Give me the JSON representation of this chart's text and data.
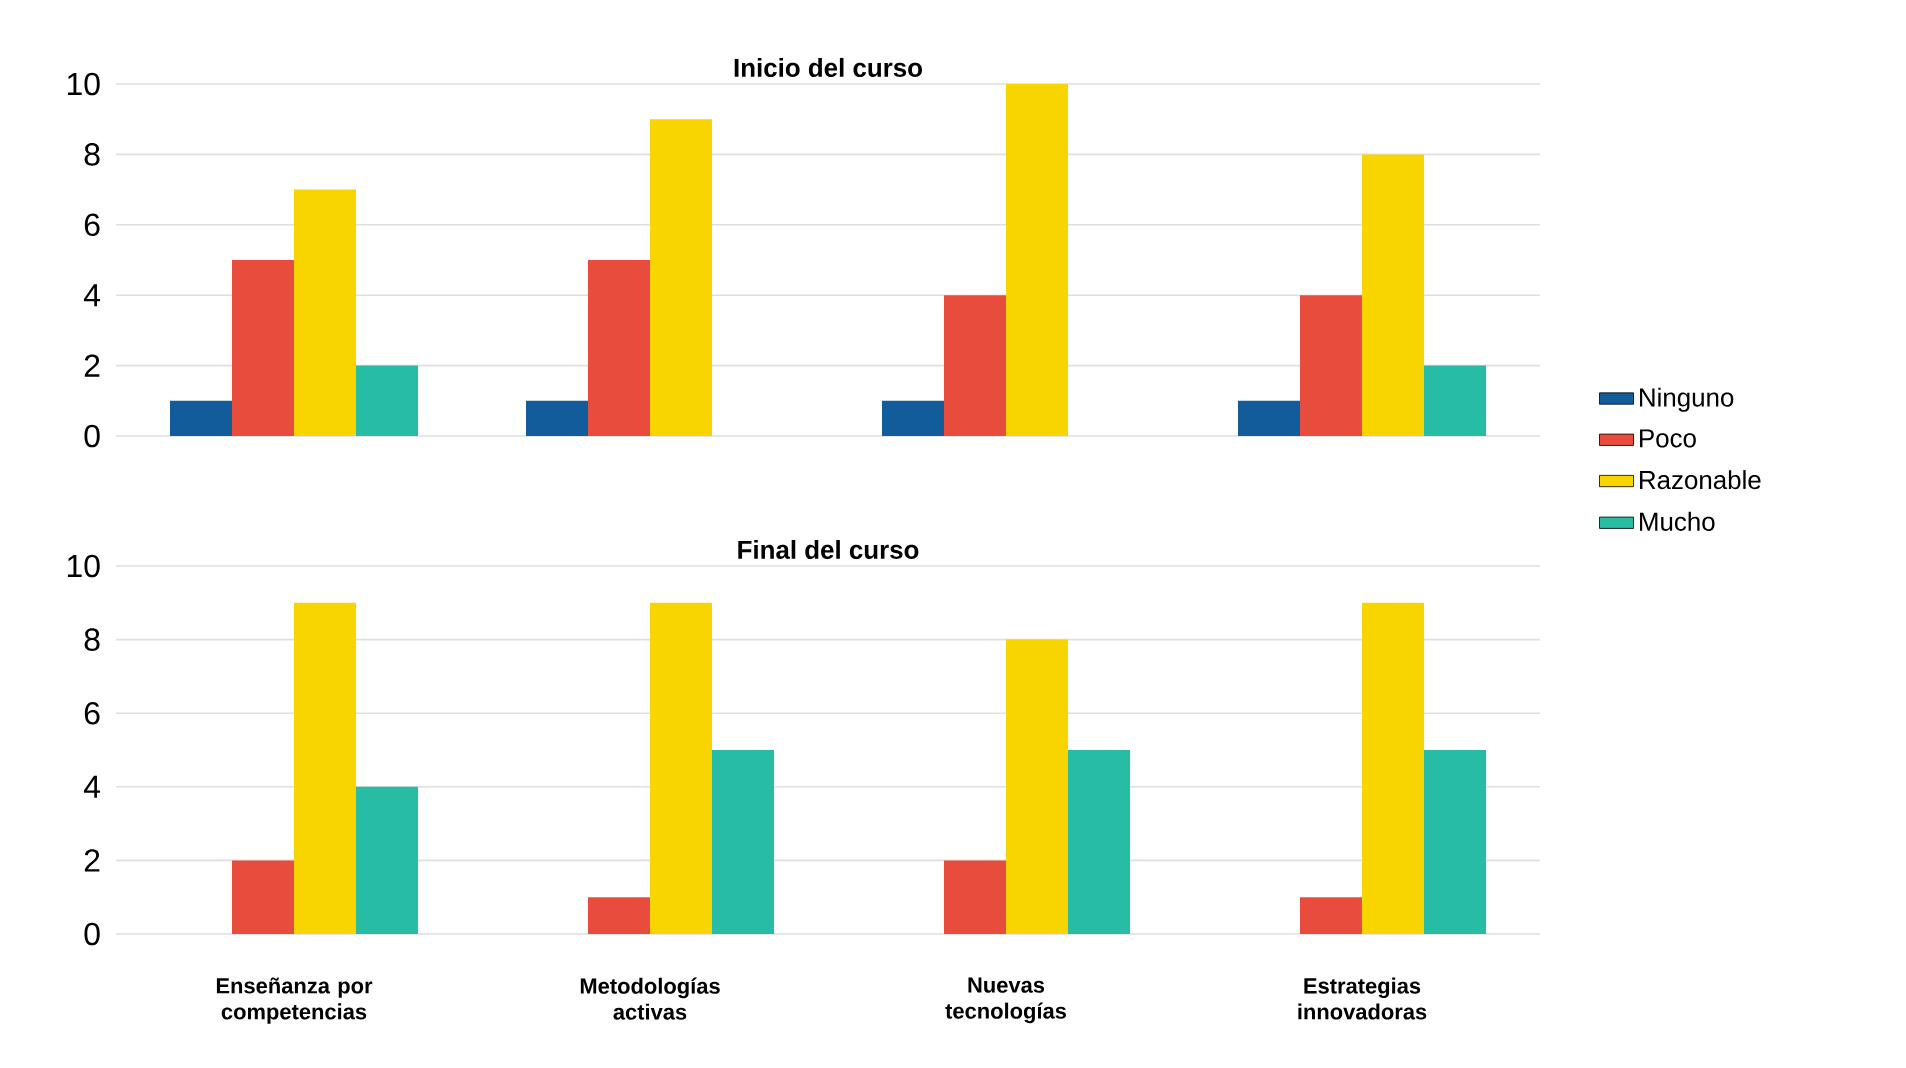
{
  "chart_data": [
    {
      "type": "bar",
      "title": "Inicio del curso",
      "categories": [
        null,
        null,
        null,
        null
      ],
      "tick_labels": "y",
      "ylim": [
        0,
        10
      ],
      "yticks": [
        0,
        2,
        4,
        6,
        8,
        10
      ],
      "grid": "y",
      "legend": "right",
      "series": [
        {
          "name": "Ninguno",
          "color": "#135c9b",
          "values": [
            1,
            1,
            1,
            1
          ]
        },
        {
          "name": "Poco",
          "color": "#e84c3d",
          "values": [
            5,
            5,
            4,
            4
          ]
        },
        {
          "name": "Razonable",
          "color": "#f9d500",
          "values": [
            7,
            9,
            10,
            8
          ]
        },
        {
          "name": "Mucho",
          "color": "#27bca4",
          "values": [
            2,
            0,
            0,
            2
          ]
        }
      ]
    },
    {
      "type": "bar",
      "title": "Final del curso",
      "categories": [
        "Enseñanza por competencias",
        "Metodologías activas",
        "Nuevas tecnologías",
        "Estrategias innovadoras"
      ],
      "ylim": [
        0,
        10
      ],
      "yticks": [
        0,
        2,
        4,
        6,
        8,
        10
      ],
      "grid": "y",
      "series": [
        {
          "color": "#135c9b",
          "values": [
            0,
            0,
            0,
            0
          ]
        },
        {
          "color": "#e84c3d",
          "values": [
            2,
            1,
            2,
            1
          ]
        },
        {
          "color": "#f9d500",
          "values": [
            9,
            9,
            8,
            9
          ]
        },
        {
          "color": "#27bca4",
          "values": [
            4,
            5,
            5,
            5
          ]
        }
      ]
    }
  ]
}
